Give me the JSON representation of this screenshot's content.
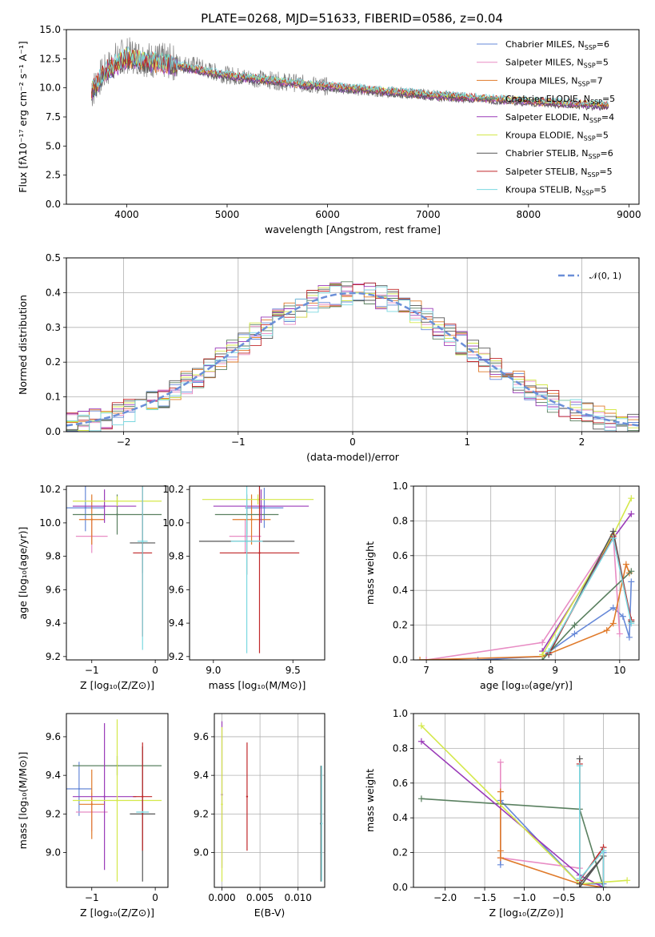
{
  "page": {
    "title": "PLATE=0268, MJD=51633, FIBERID=0586, z=0.04"
  },
  "chart_data": [
    {
      "id": "spectrum",
      "type": "line",
      "title": "PLATE=0268, MJD=51633, FIBERID=0586, z=0.04",
      "xlabel": "wavelength [Angstrom, rest frame]",
      "ylabel": "Flux [fλ10⁻¹⁷ erg cm⁻² s⁻¹ A⁻¹]",
      "xlim": [
        3400,
        9100
      ],
      "ylim": [
        0,
        15
      ],
      "xticks": [
        4000,
        5000,
        6000,
        7000,
        8000,
        9000
      ],
      "xtick_labels": [
        "4000",
        "5000",
        "6000",
        "7000",
        "8000",
        "9000"
      ],
      "yticks": [
        0,
        2.5,
        5,
        7.5,
        10,
        12.5,
        15
      ],
      "ytick_labels": [
        "0.0",
        "2.5",
        "5.0",
        "7.5",
        "10.0",
        "12.5",
        "15.0"
      ],
      "grid": false,
      "legend_position": "upper-right",
      "data_series": {
        "name": "",
        "color": "#808080",
        "x": [
          3650,
          3700,
          3800,
          3900,
          4000,
          4100,
          4200,
          4300,
          4400,
          4500,
          4600,
          4700,
          4800,
          4900,
          5000,
          5100,
          5200,
          5300,
          5400,
          5500,
          5600,
          5700,
          5800,
          5900,
          6000,
          6100,
          6200,
          6300,
          6400,
          6500,
          6600,
          6700,
          6800,
          6900,
          7000,
          7100,
          7200,
          7300,
          7400
        ],
        "y": [
          9.5,
          10.5,
          11.5,
          12.5,
          12.8,
          12.7,
          12.5,
          12.3,
          12.3,
          12.1,
          12.0,
          11.9,
          11.5,
          11.3,
          11.1,
          11.0,
          10.9,
          10.8,
          10.7,
          10.6,
          10.5,
          10.4,
          10.3,
          10.2,
          10.1,
          10.0,
          9.9,
          9.8,
          9.7,
          9.7,
          9.6,
          9.6,
          9.5,
          9.5,
          9.4,
          9.3,
          9.3,
          9.2,
          9.1
        ]
      },
      "model_x": [
        3650,
        3800,
        4000,
        4200,
        4400,
        4600,
        4800,
        5000,
        5200,
        5400,
        5600,
        5800,
        6000,
        6200,
        6400,
        6600,
        6800,
        7000,
        7200,
        7400,
        7600,
        7800,
        8000,
        8200,
        8400,
        8600,
        8800
      ],
      "model_y": [
        9.6,
        11.4,
        12.5,
        12.2,
        12.0,
        11.7,
        11.3,
        11.0,
        10.8,
        10.6,
        10.4,
        10.2,
        10.1,
        9.9,
        9.8,
        9.6,
        9.5,
        9.3,
        9.2,
        9.1,
        9.0,
        8.9,
        8.8,
        8.7,
        8.6,
        8.5,
        8.4
      ],
      "series": [
        {
          "name": "Chabrier MILES, N_SSP=6",
          "label_main": "Chabrier MILES, N",
          "label_sub": "SSP",
          "label_tail": "=6",
          "color": "#6688d8",
          "offset": 0.0
        },
        {
          "name": "Salpeter MILES, N_SSP=5",
          "label_main": "Salpeter MILES, N",
          "label_sub": "SSP",
          "label_tail": "=5",
          "color": "#e88cc4",
          "offset": 0.05
        },
        {
          "name": "Kroupa MILES, N_SSP=7",
          "label_main": "Kroupa MILES, N",
          "label_sub": "SSP",
          "label_tail": "=7",
          "color": "#e07a2a",
          "offset": -0.05
        },
        {
          "name": "Chabrier ELODIE, N_SSP=5",
          "label_main": "Chabrier ELODIE, N",
          "label_sub": "SSP",
          "label_tail": "=5",
          "color": "#5a8060",
          "offset": 0.1
        },
        {
          "name": "Salpeter ELODIE, N_SSP=4",
          "label_main": "Salpeter ELODIE, N",
          "label_sub": "SSP",
          "label_tail": "=4",
          "color": "#9a3ab8",
          "offset": -0.1
        },
        {
          "name": "Kroupa ELODIE, N_SSP=5",
          "label_main": "Kroupa ELODIE, N",
          "label_sub": "SSP",
          "label_tail": "=5",
          "color": "#d4e84a",
          "offset": 0.15
        },
        {
          "name": "Chabrier STELIB, N_SSP=6",
          "label_main": "Chabrier STELIB, N",
          "label_sub": "SSP",
          "label_tail": "=6",
          "color": "#555555",
          "offset": -0.15
        },
        {
          "name": "Salpeter STELIB, N_SSP=5",
          "label_main": "Salpeter STELIB, N",
          "label_sub": "SSP",
          "label_tail": "=5",
          "color": "#c0282a",
          "offset": 0.2
        },
        {
          "name": "Kroupa STELIB, N_SSP=5",
          "label_main": "Kroupa STELIB, N",
          "label_sub": "SSP",
          "label_tail": "=5",
          "color": "#7ad8e0",
          "offset": 0.25
        }
      ]
    },
    {
      "id": "residuals",
      "type": "line",
      "xlabel": "(data-model)/error",
      "ylabel": "Normed distribution",
      "xlim": [
        -2.5,
        2.5
      ],
      "ylim": [
        0,
        0.5
      ],
      "xticks": [
        -2,
        -1,
        0,
        1,
        2
      ],
      "xtick_labels": [
        "−2",
        "−1",
        "0",
        "1",
        "2"
      ],
      "yticks": [
        0,
        0.1,
        0.2,
        0.3,
        0.4,
        0.5
      ],
      "ytick_labels": [
        "0.0",
        "0.1",
        "0.2",
        "0.3",
        "0.4",
        "0.5"
      ],
      "grid": true,
      "legend_position": "upper-right",
      "legend_label": "𝒩(0, 1)",
      "bin_width": 0.1,
      "gaussian": {
        "mean": 0,
        "sigma": 1,
        "color": "#6a8fd8"
      }
    },
    {
      "id": "age-vs-Z",
      "type": "scatter",
      "xlabel": "Z [log₁₀(Z/Z⊙)]",
      "ylabel": "age  [log₁₀(age/yr)]",
      "xlim": [
        -1.4,
        0.2
      ],
      "ylim": [
        9.18,
        10.22
      ],
      "xticks": [
        -1,
        0
      ],
      "xtick_labels": [
        "−1",
        "0"
      ],
      "yticks": [
        9.2,
        9.4,
        9.6,
        9.8,
        10.0,
        10.2
      ],
      "ytick_labels": [
        "9.2",
        "9.4",
        "9.6",
        "9.8",
        "10.0",
        "10.2"
      ],
      "grid": false,
      "points": [
        {
          "x": -1.1,
          "y": 10.09,
          "xerr": 0.3,
          "yerr": 0.14,
          "color": "#6688d8"
        },
        {
          "x": -1.0,
          "y": 9.92,
          "xerr": 0.25,
          "yerr": 0.1,
          "color": "#e88cc4"
        },
        {
          "x": -1.0,
          "y": 10.02,
          "xerr": 0.2,
          "yerr": 0.15,
          "color": "#e07a2a"
        },
        {
          "x": -0.6,
          "y": 10.05,
          "xerr": 0.7,
          "yerr": 0.12,
          "color": "#5a8060"
        },
        {
          "x": -0.8,
          "y": 10.1,
          "xerr": 0.5,
          "yerr": 0.1,
          "color": "#9a3ab8"
        },
        {
          "x": -0.6,
          "y": 10.13,
          "xerr": 0.7,
          "yerr": 0.03,
          "color": "#d4e84a"
        },
        {
          "x": -0.2,
          "y": 9.88,
          "xerr": 0.2,
          "yerr": 0.18,
          "color": "#555555"
        },
        {
          "x": -0.2,
          "y": 9.82,
          "xerr": 0.15,
          "yerr": 0.5,
          "color": "#c0282a"
        },
        {
          "x": -0.2,
          "y": 9.89,
          "xerr": 0.08,
          "yerr": 0.65,
          "color": "#7ad8e0"
        }
      ]
    },
    {
      "id": "age-vs-mass",
      "type": "scatter",
      "xlabel": "mass [log₁₀(M/M⊙)]",
      "ylabel": "",
      "xlim": [
        8.85,
        9.7
      ],
      "ylim": [
        9.18,
        10.22
      ],
      "xticks": [
        9.0,
        9.5
      ],
      "xtick_labels": [
        "9.0",
        "9.5"
      ],
      "yticks": [
        9.2,
        9.4,
        9.6,
        9.8,
        10.0,
        10.2
      ],
      "ytick_labels": [
        "9.2",
        "9.4",
        "9.6",
        "9.8",
        "10.0",
        "10.2"
      ],
      "grid": false,
      "points": [
        {
          "x": 9.32,
          "y": 10.09,
          "xerr": 0.12,
          "yerr": 0.12,
          "color": "#6688d8"
        },
        {
          "x": 9.2,
          "y": 9.92,
          "xerr": 0.1,
          "yerr": 0.1,
          "color": "#e88cc4"
        },
        {
          "x": 9.24,
          "y": 10.02,
          "xerr": 0.12,
          "yerr": 0.15,
          "color": "#e07a2a"
        },
        {
          "x": 9.21,
          "y": 10.05,
          "xerr": 0.2,
          "yerr": 0.12,
          "color": "#5a8060"
        },
        {
          "x": 9.3,
          "y": 10.1,
          "xerr": 0.3,
          "yerr": 0.1,
          "color": "#9a3ab8"
        },
        {
          "x": 9.28,
          "y": 10.14,
          "xerr": 0.35,
          "yerr": 0.03,
          "color": "#d4e84a"
        },
        {
          "x": 9.21,
          "y": 9.89,
          "xerr": 0.3,
          "yerr": 0.2,
          "color": "#555555"
        },
        {
          "x": 9.29,
          "y": 9.82,
          "xerr": 0.25,
          "yerr": 0.6,
          "color": "#c0282a"
        },
        {
          "x": 9.21,
          "y": 9.89,
          "xerr": 0.1,
          "yerr": 0.67,
          "color": "#7ad8e0"
        }
      ]
    },
    {
      "id": "massweight-vs-age",
      "type": "line",
      "xlabel": "age  [log₁₀(age/yr)]",
      "ylabel": "mass weight",
      "xlim": [
        6.8,
        10.3
      ],
      "ylim": [
        0,
        1
      ],
      "xticks": [
        7,
        8,
        9,
        10
      ],
      "xtick_labels": [
        "7",
        "8",
        "9",
        "10"
      ],
      "yticks": [
        0,
        0.2,
        0.4,
        0.6,
        0.8,
        1.0
      ],
      "ytick_labels": [
        "0.0",
        "0.2",
        "0.4",
        "0.6",
        "0.8",
        "1.0"
      ],
      "grid": true,
      "series": [
        {
          "name": "Chabrier MILES",
          "color": "#6688d8",
          "x": [
            7.8,
            8.8,
            9.3,
            9.9,
            10.05,
            10.15,
            10.18
          ],
          "y": [
            0.0,
            0.02,
            0.15,
            0.3,
            0.25,
            0.13,
            0.45
          ]
        },
        {
          "name": "Salpeter MILES",
          "color": "#e88cc4",
          "x": [
            7.0,
            8.8,
            9.9,
            10.0
          ],
          "y": [
            0.0,
            0.1,
            0.72,
            0.15
          ]
        },
        {
          "name": "Kroupa MILES",
          "color": "#e07a2a",
          "x": [
            6.9,
            8.8,
            9.8,
            9.9,
            10.1,
            10.15
          ],
          "y": [
            0.0,
            0.02,
            0.17,
            0.21,
            0.55,
            0.5
          ]
        },
        {
          "name": "Chabrier ELODIE",
          "color": "#5a8060",
          "x": [
            8.8,
            9.3,
            10.18
          ],
          "y": [
            0.0,
            0.2,
            0.51
          ]
        },
        {
          "name": "Salpeter ELODIE",
          "color": "#9a3ab8",
          "x": [
            8.8,
            9.9,
            10.18
          ],
          "y": [
            0.05,
            0.7,
            0.84
          ]
        },
        {
          "name": "Kroupa ELODIE",
          "color": "#d4e84a",
          "x": [
            8.8,
            9.9,
            10.18
          ],
          "y": [
            0.03,
            0.72,
            0.93
          ]
        },
        {
          "name": "Chabrier STELIB",
          "color": "#555555",
          "x": [
            8.9,
            9.9,
            10.18
          ],
          "y": [
            0.03,
            0.74,
            0.22
          ]
        },
        {
          "name": "Salpeter STELIB",
          "color": "#c0282a",
          "x": [
            8.9,
            9.9,
            10.18
          ],
          "y": [
            0.04,
            0.71,
            0.23
          ]
        },
        {
          "name": "Kroupa STELIB",
          "color": "#7ad8e0",
          "x": [
            8.9,
            9.9,
            10.18
          ],
          "y": [
            0.05,
            0.7,
            0.21
          ]
        }
      ]
    },
    {
      "id": "mass-vs-Z",
      "type": "scatter",
      "xlabel": "Z [log₁₀(Z/Z⊙)]",
      "ylabel": "mass [log₁₀(M/M⊙)]",
      "xlim": [
        -1.4,
        0.2
      ],
      "ylim": [
        8.82,
        9.72
      ],
      "xticks": [
        -1,
        0
      ],
      "xtick_labels": [
        "−1",
        "0"
      ],
      "yticks": [
        9.0,
        9.2,
        9.4,
        9.6
      ],
      "ytick_labels": [
        "9.0",
        "9.2",
        "9.4",
        "9.6"
      ],
      "grid": false,
      "points": [
        {
          "x": -1.2,
          "y": 9.33,
          "xerr": 0.2,
          "yerr": 0.14,
          "color": "#6688d8"
        },
        {
          "x": -1.0,
          "y": 9.21,
          "xerr": 0.25,
          "yerr": 0.1,
          "color": "#e88cc4"
        },
        {
          "x": -1.0,
          "y": 9.25,
          "xerr": 0.2,
          "yerr": 0.18,
          "color": "#e07a2a"
        },
        {
          "x": -0.6,
          "y": 9.45,
          "xerr": 0.7,
          "yerr": 0.05,
          "color": "#5a8060"
        },
        {
          "x": -0.8,
          "y": 9.29,
          "xerr": 0.5,
          "yerr": 0.38,
          "color": "#9a3ab8"
        },
        {
          "x": -0.6,
          "y": 9.27,
          "xerr": 0.7,
          "yerr": 0.42,
          "color": "#d4e84a"
        },
        {
          "x": -0.2,
          "y": 9.2,
          "xerr": 0.2,
          "yerr": 0.35,
          "color": "#555555"
        },
        {
          "x": -0.2,
          "y": 9.29,
          "xerr": 0.15,
          "yerr": 0.28,
          "color": "#c0282a"
        },
        {
          "x": -0.2,
          "y": 9.21,
          "xerr": 0.1,
          "yerr": 0.0,
          "color": "#7ad8e0"
        }
      ]
    },
    {
      "id": "mass-vs-EBV",
      "type": "scatter",
      "xlabel": "E(B-V)",
      "ylabel": "",
      "xlim": [
        -0.001,
        0.0135
      ],
      "ylim": [
        8.82,
        9.72
      ],
      "xticks": [
        0.0,
        0.005,
        0.01
      ],
      "xtick_labels": [
        "0.000",
        "0.005",
        "0.010"
      ],
      "yticks": [
        9.0,
        9.2,
        9.4,
        9.6
      ],
      "ytick_labels": [
        "9.0",
        "9.2",
        "9.4",
        "9.6"
      ],
      "grid": true,
      "points": [
        {
          "x": 0.0,
          "y": 9.3,
          "xerr": 0.0,
          "yerr": 0.38,
          "color": "#9a3ab8"
        },
        {
          "x": 0.0,
          "y": 9.25,
          "xerr": 0.0,
          "yerr": 0.4,
          "color": "#d4e84a"
        },
        {
          "x": 0.0033,
          "y": 9.29,
          "xerr": 0.0,
          "yerr": 0.28,
          "color": "#c0282a"
        },
        {
          "x": 0.013,
          "y": 9.15,
          "xerr": 0.0,
          "yerr": 0.3,
          "color": "#555555"
        },
        {
          "x": 0.0131,
          "y": 9.15,
          "xerr": 0.0,
          "yerr": 0.3,
          "color": "#7ad8e0"
        }
      ]
    },
    {
      "id": "massweight-vs-Z",
      "type": "line",
      "xlabel": "Z [log₁₀(Z/Z⊙)]",
      "ylabel": "mass weight",
      "xlim": [
        -2.4,
        0.45
      ],
      "ylim": [
        0,
        1
      ],
      "xticks": [
        -2.0,
        -1.5,
        -1.0,
        -0.5,
        0.0
      ],
      "xtick_labels": [
        "−2.0",
        "−1.5",
        "−1.0",
        "−0.5",
        "0.0"
      ],
      "yticks": [
        0,
        0.2,
        0.4,
        0.6,
        0.8,
        1.0
      ],
      "ytick_labels": [
        "0.0",
        "0.2",
        "0.4",
        "0.6",
        "0.8",
        "1.0"
      ],
      "grid": true,
      "series": [
        {
          "name": "Chabrier MILES",
          "color": "#6688d8",
          "x": [
            -1.3,
            -1.3,
            -0.3,
            0.0,
            0.0
          ],
          "y": [
            0.13,
            0.5,
            0.02,
            0.02,
            0.2
          ]
        },
        {
          "name": "Salpeter MILES",
          "color": "#e88cc4",
          "x": [
            -1.3,
            -1.3,
            -0.3,
            -0.3
          ],
          "y": [
            0.72,
            0.17,
            0.11,
            0.0
          ]
        },
        {
          "name": "Kroupa MILES",
          "color": "#e07a2a",
          "x": [
            -1.3,
            -1.3,
            -1.3,
            -0.3,
            0.0
          ],
          "y": [
            0.55,
            0.21,
            0.17,
            0.02,
            0.0
          ]
        },
        {
          "name": "Chabrier ELODIE",
          "color": "#5a8060",
          "x": [
            -2.3,
            -0.3,
            0.0
          ],
          "y": [
            0.51,
            0.45,
            0.0
          ]
        },
        {
          "name": "Salpeter ELODIE",
          "color": "#9a3ab8",
          "x": [
            -2.3,
            -0.3,
            0.0
          ],
          "y": [
            0.84,
            0.07,
            0.0
          ]
        },
        {
          "name": "Kroupa ELODIE",
          "color": "#d4e84a",
          "x": [
            -2.3,
            -0.3,
            0.3
          ],
          "y": [
            0.93,
            0.02,
            0.04
          ]
        },
        {
          "name": "Chabrier STELIB",
          "color": "#555555",
          "x": [
            -0.3,
            -0.3,
            0.0,
            -0.3
          ],
          "y": [
            0.74,
            0.0,
            0.18,
            0.02
          ]
        },
        {
          "name": "Salpeter STELIB",
          "color": "#c0282a",
          "x": [
            -0.3,
            -0.3,
            0.0,
            0.0
          ],
          "y": [
            0.71,
            0.04,
            0.23,
            0.0
          ]
        },
        {
          "name": "Kroupa STELIB",
          "color": "#7ad8e0",
          "x": [
            -0.3,
            -0.3,
            0.0,
            0.0
          ],
          "y": [
            0.7,
            0.05,
            0.21,
            0.0
          ]
        }
      ]
    }
  ]
}
